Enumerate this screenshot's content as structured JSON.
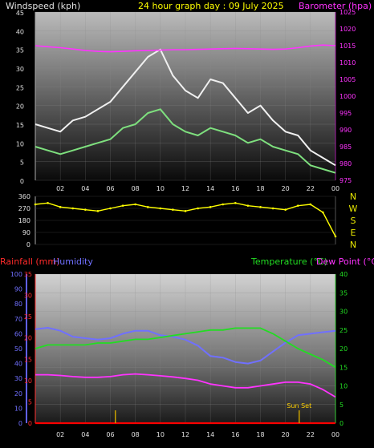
{
  "header": {
    "left_title": "Windspeed (kph)",
    "center_title": "24 hour graph day : 09 July 2025",
    "right_title": "Barometer (hpa)"
  },
  "bottom_header": {
    "rainfall": "Rainfall (mm)",
    "humidity": "Humidity",
    "temperature": "Temperature (°C)",
    "dewpoint": "Dew Point (°C)"
  },
  "annotation": {
    "sunset": "Sun Set"
  },
  "colors": {
    "wind_gust": "#f0f0f0",
    "wind_avg": "#7ee07e",
    "barometer": "#ff33ff",
    "direction": "#ffff00",
    "humidity": "#7070ff",
    "temperature": "#22dd22",
    "dewpoint": "#ff33ff",
    "rain": "#ff0000",
    "sunset_marker": "#c8a000"
  },
  "chart_data": [
    {
      "type": "line",
      "name": "wind_and_pressure",
      "x_ticks": [
        "02",
        "04",
        "06",
        "08",
        "10",
        "12",
        "14",
        "16",
        "18",
        "20",
        "22",
        "00"
      ],
      "x": [
        0,
        1,
        2,
        3,
        4,
        5,
        6,
        7,
        8,
        9,
        10,
        11,
        12,
        13,
        14,
        15,
        16,
        17,
        18,
        19,
        20,
        21,
        22,
        23,
        24
      ],
      "left_axis": {
        "label": "Windspeed (kph)",
        "ylim": [
          0,
          45
        ],
        "ticks": [
          0,
          5,
          10,
          15,
          20,
          25,
          30,
          35,
          40,
          45
        ]
      },
      "right_axis": {
        "label": "Barometer (hpa)",
        "ylim": [
          975,
          1025
        ],
        "ticks": [
          975,
          980,
          985,
          990,
          995,
          1000,
          1005,
          1010,
          1015,
          1020,
          1025
        ]
      },
      "series": [
        {
          "key": "gust",
          "axis": "left",
          "values": [
            15,
            14,
            13,
            16,
            17,
            19,
            21,
            25,
            29,
            33,
            35,
            28,
            24,
            22,
            27,
            26,
            22,
            18,
            20,
            16,
            13,
            12,
            8,
            6,
            4
          ]
        },
        {
          "key": "average",
          "axis": "left",
          "values": [
            9,
            8,
            7,
            8,
            9,
            10,
            11,
            14,
            15,
            18,
            19,
            15,
            13,
            12,
            14,
            13,
            12,
            10,
            11,
            9,
            8,
            7,
            4,
            3,
            2
          ]
        },
        {
          "key": "barometer",
          "axis": "right",
          "values": [
            1015.0,
            1014.7,
            1014.4,
            1014.0,
            1013.6,
            1013.3,
            1013.2,
            1013.3,
            1013.5,
            1013.6,
            1013.7,
            1013.8,
            1013.8,
            1013.9,
            1014.0,
            1014.1,
            1014.2,
            1014.1,
            1014.0,
            1013.9,
            1014.0,
            1014.4,
            1014.9,
            1015.2,
            1015.0
          ]
        }
      ]
    },
    {
      "type": "scatter",
      "name": "wind_direction",
      "y_ticks": [
        {
          "value": 360,
          "label": "360"
        },
        {
          "value": 270,
          "label": "270"
        },
        {
          "value": 180,
          "label": "180"
        },
        {
          "value": 90,
          "label": "90"
        },
        {
          "value": 0,
          "label": "0"
        }
      ],
      "compass": [
        "N",
        "W",
        "S",
        "E",
        "N"
      ],
      "ylim": [
        0,
        360
      ],
      "x": [
        0,
        1,
        2,
        3,
        4,
        5,
        6,
        7,
        8,
        9,
        10,
        11,
        12,
        13,
        14,
        15,
        16,
        17,
        18,
        19,
        20,
        21,
        22,
        23,
        24
      ],
      "values": [
        300,
        310,
        280,
        270,
        260,
        250,
        270,
        290,
        300,
        280,
        270,
        260,
        250,
        270,
        280,
        300,
        310,
        290,
        280,
        270,
        260,
        290,
        300,
        240,
        60
      ]
    },
    {
      "type": "line",
      "name": "humidity_temperature_rain",
      "x_ticks": [
        "02",
        "04",
        "06",
        "08",
        "10",
        "12",
        "14",
        "16",
        "18",
        "20",
        "22",
        "00"
      ],
      "x": [
        0,
        1,
        2,
        3,
        4,
        5,
        6,
        7,
        8,
        9,
        10,
        11,
        12,
        13,
        14,
        15,
        16,
        17,
        18,
        19,
        20,
        21,
        22,
        23,
        24
      ],
      "left_axis_humidity": {
        "ylim": [
          0,
          100
        ],
        "ticks": [
          0,
          10,
          20,
          30,
          40,
          50,
          60,
          70,
          80,
          90,
          100
        ]
      },
      "left_axis_rain": {
        "ylim": [
          0,
          35
        ],
        "ticks": [
          0,
          5,
          10,
          15,
          20,
          25,
          30,
          35
        ]
      },
      "right_axis_temp": {
        "ylim": [
          0,
          40
        ],
        "ticks": [
          0,
          5,
          10,
          15,
          20,
          25,
          30,
          35,
          40
        ]
      },
      "series": [
        {
          "key": "humidity",
          "axis": "humidity",
          "values": [
            63,
            64,
            62,
            58,
            57,
            56,
            57,
            60,
            62,
            62,
            59,
            58,
            56,
            52,
            45,
            44,
            41,
            40,
            42,
            48,
            54,
            59,
            60,
            61,
            62
          ]
        },
        {
          "key": "temperature",
          "axis": "temp",
          "values": [
            20,
            21,
            21,
            21,
            21,
            21.5,
            21.5,
            22,
            22.5,
            22.5,
            23,
            23.5,
            24,
            24.5,
            25,
            25,
            25.5,
            25.5,
            25.5,
            24,
            22,
            20,
            18.5,
            17,
            15
          ]
        },
        {
          "key": "dewpoint",
          "axis": "temp",
          "values": [
            13,
            13,
            12.8,
            12.5,
            12.3,
            12.3,
            12.5,
            13,
            13.2,
            13,
            12.7,
            12.4,
            12,
            11.5,
            10.5,
            10,
            9.5,
            9.5,
            10,
            10.5,
            11,
            11,
            10.5,
            9,
            7
          ]
        },
        {
          "key": "rain",
          "axis": "rain",
          "values": [
            0,
            0,
            0,
            0,
            0,
            0,
            0,
            0,
            0,
            0,
            0,
            0,
            0,
            0,
            0,
            0,
            0,
            0,
            0,
            0,
            0,
            0,
            0,
            0,
            0
          ]
        }
      ],
      "markers": [
        {
          "label": "",
          "x": 6.4,
          "kind": "sunrise"
        },
        {
          "label": "Sun Set",
          "x": 21.1,
          "kind": "sunset"
        }
      ]
    }
  ]
}
